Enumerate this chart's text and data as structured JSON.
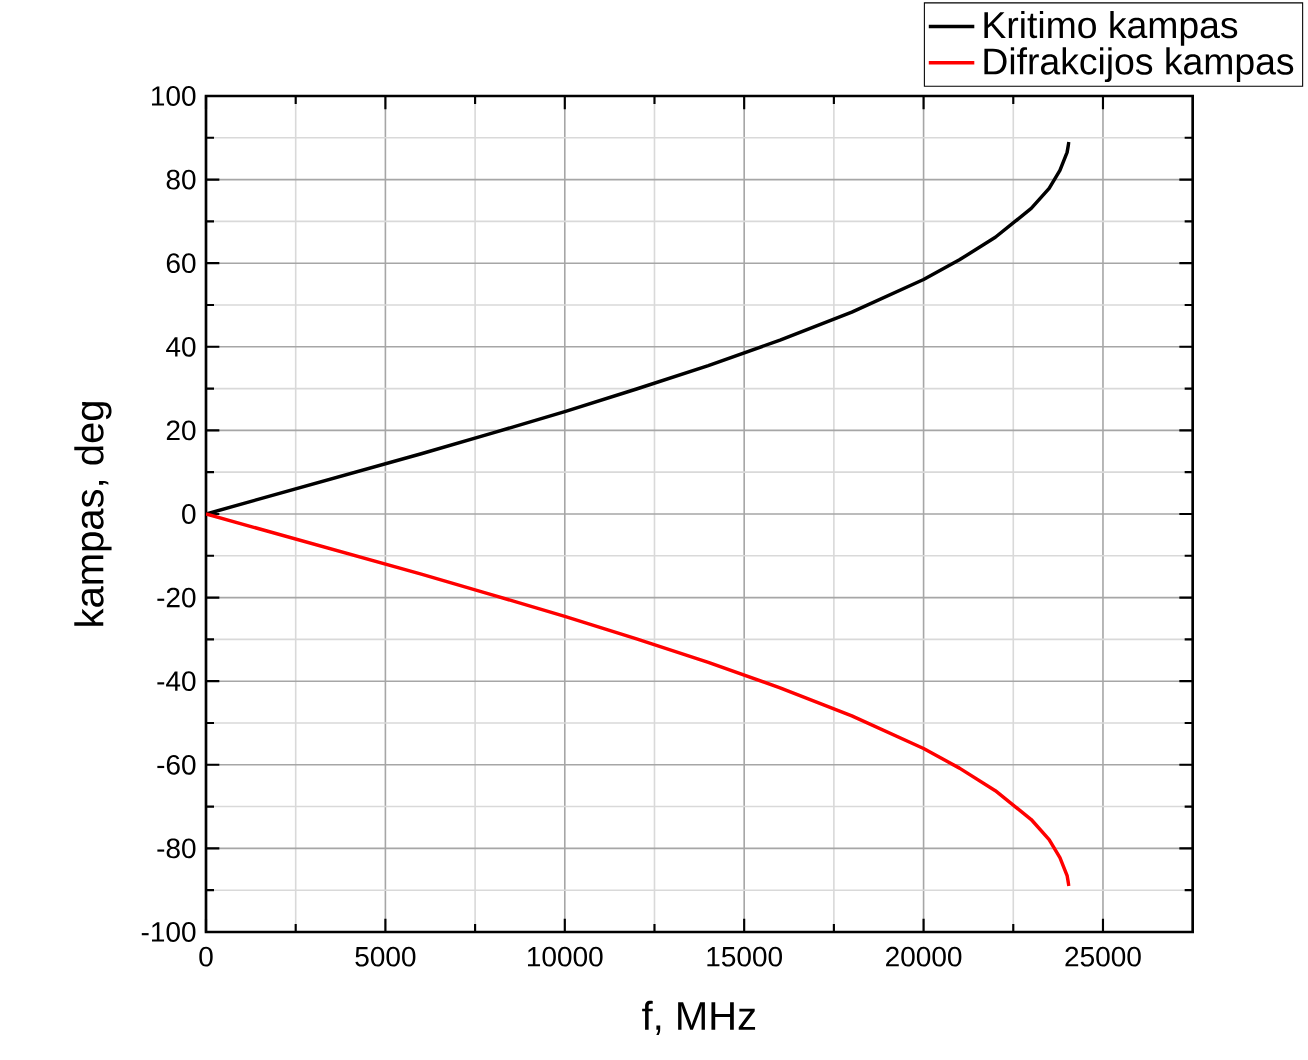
{
  "chart_data": {
    "type": "line",
    "xlabel": "f, MHz",
    "ylabel": "kampas, deg",
    "xlim": [
      0,
      27500
    ],
    "ylim": [
      -100,
      100
    ],
    "xticks": [
      0,
      5000,
      10000,
      15000,
      20000,
      25000
    ],
    "yticks": [
      -100,
      -80,
      -60,
      -40,
      -20,
      0,
      20,
      40,
      60,
      80,
      100
    ],
    "grid": true,
    "legend": "top right",
    "series": [
      {
        "name": "Kritimo kampas",
        "color": "#000000",
        "x": [
          0,
          2000,
          4000,
          6000,
          8000,
          10000,
          12000,
          14000,
          16000,
          18000,
          20000,
          21000,
          22000,
          23000,
          23500,
          23800,
          24000,
          24050
        ],
        "values": [
          0,
          4.8,
          9.6,
          14.4,
          19.4,
          24.5,
          29.9,
          35.5,
          41.6,
          48.3,
          56.1,
          60.8,
          66.2,
          73.1,
          77.9,
          82.2,
          86.5,
          89
        ]
      },
      {
        "name": "Difrakcijos kampas",
        "color": "#ff0000",
        "x": [
          0,
          2000,
          4000,
          6000,
          8000,
          10000,
          12000,
          14000,
          16000,
          18000,
          20000,
          21000,
          22000,
          23000,
          23500,
          23800,
          24000,
          24050
        ],
        "values": [
          0,
          -4.8,
          -9.6,
          -14.4,
          -19.4,
          -24.5,
          -29.9,
          -35.5,
          -41.6,
          -48.3,
          -56.1,
          -60.8,
          -66.2,
          -73.1,
          -77.9,
          -82.2,
          -86.5,
          -89
        ]
      }
    ]
  }
}
